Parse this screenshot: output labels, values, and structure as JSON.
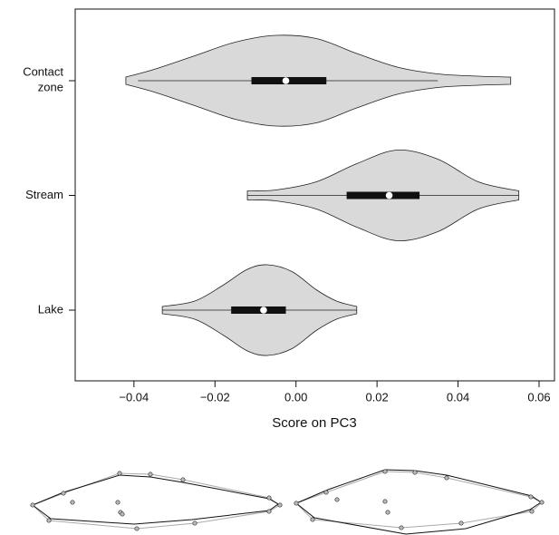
{
  "chart_data": {
    "type": "violin",
    "x_label": "Score on PC3",
    "categories": [
      "Contact zone",
      "Stream",
      "Lake"
    ],
    "violins": [
      {
        "min": -0.039,
        "q1": -0.011,
        "median": -0.0025,
        "q3": 0.0075,
        "max": 0.035,
        "density_x": [
          -0.042,
          -0.035,
          -0.025,
          -0.015,
          -0.005,
          0.005,
          0.015,
          0.025,
          0.035,
          0.045,
          0.053
        ],
        "density": [
          0.08,
          0.25,
          0.55,
          0.85,
          1.0,
          0.93,
          0.6,
          0.3,
          0.15,
          0.1,
          0.08
        ]
      },
      {
        "min": -0.012,
        "q1": 0.0125,
        "median": 0.023,
        "q3": 0.0305,
        "max": 0.055,
        "density_x": [
          -0.012,
          -0.005,
          0.005,
          0.015,
          0.025,
          0.035,
          0.045,
          0.055
        ],
        "density": [
          0.1,
          0.12,
          0.3,
          0.7,
          1.0,
          0.8,
          0.3,
          0.1
        ]
      },
      {
        "min": -0.033,
        "q1": -0.016,
        "median": -0.008,
        "q3": -0.0025,
        "max": 0.015,
        "density_x": [
          -0.033,
          -0.025,
          -0.018,
          -0.012,
          -0.007,
          -0.001,
          0.005,
          0.01,
          0.015
        ],
        "density": [
          0.08,
          0.2,
          0.55,
          0.9,
          1.0,
          0.85,
          0.45,
          0.2,
          0.08
        ]
      }
    ],
    "color": "#d9d9d9",
    "xlim": [
      -0.0545,
      0.0638
    ],
    "xticks": [
      {
        "value": -0.04,
        "label": "−0.04"
      },
      {
        "value": -0.02,
        "label": "−0.02"
      },
      {
        "value": 0,
        "label": "0.00"
      },
      0.02,
      0.04,
      0.06
    ]
  }
}
